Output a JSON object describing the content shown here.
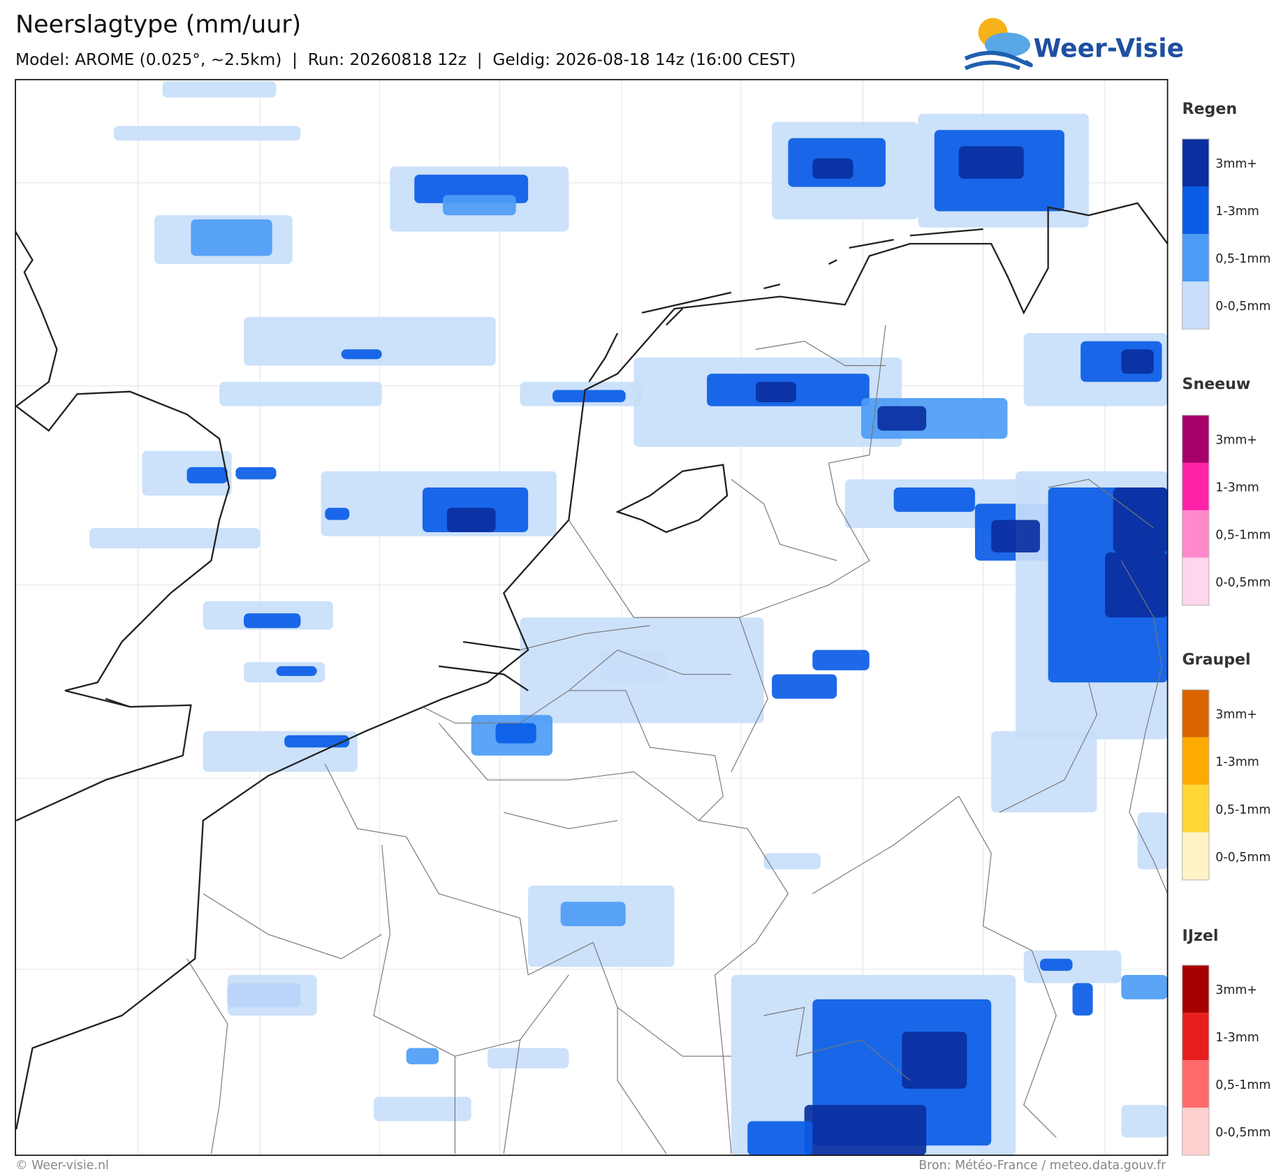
{
  "header": {
    "title": "Neerslagtype (mm/uur)",
    "subtitle": "Model: AROME (0.025°, ~2.5km)  |  Run: 20260818 12z  |  Geldig: 2026-08-18 14z (16:00 CEST)",
    "logo": "Weer-Visie"
  },
  "legend": [
    {
      "title": "Regen",
      "labels": [
        "3mm+",
        "1-3mm",
        "0,5-1mm",
        "0-0,5mm"
      ],
      "colors": [
        "#0a2fa0",
        "#0a5ce6",
        "#4d9cf5",
        "#c8defa"
      ]
    },
    {
      "title": "Sneeuw",
      "labels": [
        "3mm+",
        "1-3mm",
        "0,5-1mm",
        "0-0,5mm"
      ],
      "colors": [
        "#a8006a",
        "#ff22a8",
        "#ff8acb",
        "#ffd6ec"
      ]
    },
    {
      "title": "Graupel",
      "labels": [
        "3mm+",
        "1-3mm",
        "0,5-1mm",
        "0-0,5mm"
      ],
      "colors": [
        "#d96400",
        "#ffaa00",
        "#ffd633",
        "#fff3c6"
      ]
    },
    {
      "title": "IJzel",
      "labels": [
        "3mm+",
        "1-3mm",
        "0,5-1mm",
        "0-0,5mm"
      ],
      "colors": [
        "#a80000",
        "#e81e1e",
        "#ff6b6b",
        "#ffd0d0"
      ]
    }
  ],
  "footer": {
    "left": "© Weer-visie.nl",
    "right": "Bron: Météo-France / meteo.data.gouv.fr"
  }
}
